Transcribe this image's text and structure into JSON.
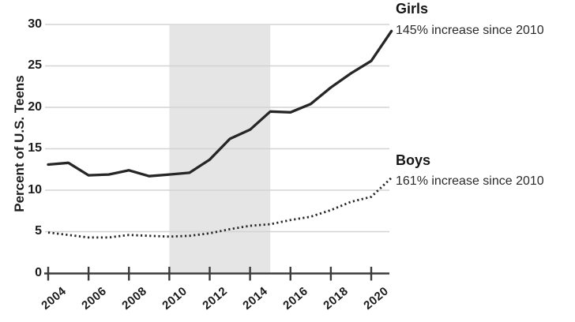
{
  "chart_data": {
    "type": "line",
    "title": "",
    "ylabel": "Percent of U.S. Teens",
    "xlabel": "",
    "ylim": [
      0,
      30
    ],
    "xlim": [
      2004,
      2021
    ],
    "grid": "horizontal",
    "legend_position": "right-of-line-ends",
    "yticks": [
      "0",
      "5",
      "10",
      "15",
      "20",
      "25",
      "30"
    ],
    "xticks": [
      "2004",
      "2006",
      "2008",
      "2010",
      "2012",
      "2014",
      "2016",
      "2018",
      "2020"
    ],
    "x": [
      2004,
      2005,
      2006,
      2007,
      2008,
      2009,
      2010,
      2011,
      2012,
      2013,
      2014,
      2015,
      2016,
      2017,
      2018,
      2019,
      2020,
      2021
    ],
    "shaded_band": {
      "from_year": 2010,
      "to_year": 2015,
      "color": "#e5e5e5"
    },
    "series": [
      {
        "name": "Girls",
        "annotation": "145% increase since 2010",
        "line_style": "solid",
        "color": "#262626",
        "values": [
          13.1,
          13.3,
          11.8,
          11.9,
          12.4,
          11.7,
          11.9,
          12.1,
          13.7,
          16.2,
          17.3,
          19.5,
          19.4,
          20.4,
          22.4,
          24.1,
          25.6,
          29.2
        ]
      },
      {
        "name": "Boys",
        "annotation": "161% increase since 2010",
        "line_style": "dotted",
        "color": "#262626",
        "values": [
          4.9,
          4.6,
          4.3,
          4.3,
          4.6,
          4.5,
          4.4,
          4.5,
          4.8,
          5.3,
          5.7,
          5.9,
          6.4,
          6.8,
          7.6,
          8.6,
          9.2,
          11.5
        ]
      }
    ],
    "colors": {
      "axis": "#3b3b3b",
      "gridline": "#d3d3d3",
      "band": "#e5e5e5",
      "text": "#1b1b1b"
    }
  }
}
